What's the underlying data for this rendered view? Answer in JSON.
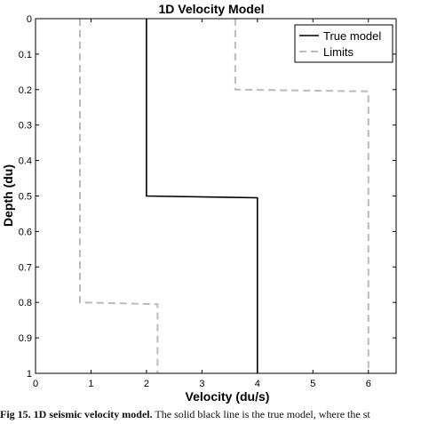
{
  "chart_data": {
    "type": "line",
    "title": "1D Velocity Model",
    "xlabel": "Velocity (du/s)",
    "ylabel": "Depth (du)",
    "xlim": [
      0,
      6.5
    ],
    "ylim": [
      0,
      1
    ],
    "y_reversed": true,
    "grid": false,
    "legend_position": "top-right",
    "xticks": [
      0,
      1,
      2,
      3,
      4,
      5,
      6
    ],
    "yticks": [
      0,
      0.1,
      0.2,
      0.3,
      0.4,
      0.5,
      0.6,
      0.7,
      0.8,
      0.9,
      1
    ],
    "series": [
      {
        "name": "True model",
        "style": "solid",
        "color": "#000000",
        "points": [
          [
            2,
            0
          ],
          [
            2,
            0.5
          ],
          [
            4,
            0.505
          ],
          [
            4,
            1
          ]
        ]
      },
      {
        "name": "Limits",
        "style": "dashed",
        "color": "#bbbbbb",
        "points": [
          [
            0.8,
            0
          ],
          [
            0.8,
            0.8
          ],
          [
            2.2,
            0.805
          ],
          [
            2.2,
            1
          ]
        ]
      },
      {
        "name": "",
        "legend": false,
        "style": "dashed",
        "color": "#bbbbbb",
        "points": [
          [
            3.6,
            0
          ],
          [
            3.6,
            0.2
          ],
          [
            6,
            0.205
          ],
          [
            6,
            1
          ]
        ]
      }
    ]
  },
  "caption": {
    "bold_part": "Fig 15. 1D seismic velocity model.",
    "text": " The solid black line is the true model, where the st"
  }
}
